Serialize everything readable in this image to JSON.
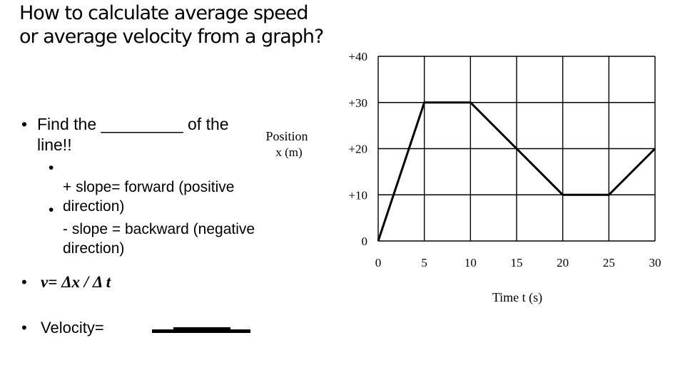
{
  "slide": {
    "title": "How to calculate average speed or average velocity from a graph?",
    "bullets": {
      "find": "Find the _________ of the line!!",
      "positive": "+ slope= forward (positive direction)",
      "negative": "- slope = backward (negative direction)",
      "formula": "v= Δx / Δ t",
      "velocity": "Velocity="
    },
    "bullet_glyph": "•"
  },
  "chart_data": {
    "type": "line",
    "title": "",
    "xlabel": "Time t (s)",
    "ylabel": "Position x (m)",
    "xlim": [
      0,
      30
    ],
    "ylim": [
      0,
      40
    ],
    "x_ticks": [
      0,
      5,
      10,
      15,
      20,
      25,
      30
    ],
    "x_tick_labels": [
      "0",
      "5",
      "10",
      "15",
      "20",
      "25",
      "30"
    ],
    "y_ticks": [
      0,
      10,
      20,
      30,
      40
    ],
    "y_tick_labels": [
      "0",
      "+10",
      "+20",
      "+30",
      "+40"
    ],
    "grid": true,
    "legend": "none",
    "series": [
      {
        "x": [
          0,
          5,
          10,
          15,
          20,
          25,
          30
        ],
        "y": [
          0,
          30,
          30,
          20,
          10,
          10,
          20
        ]
      }
    ]
  }
}
